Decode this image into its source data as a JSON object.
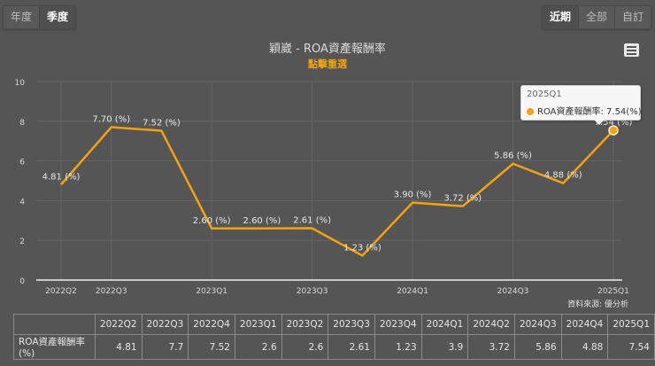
{
  "toolbar": {
    "period_buttons": [
      {
        "label": "年度",
        "active": false
      },
      {
        "label": "季度",
        "active": true
      }
    ],
    "range_buttons": [
      {
        "label": "近期",
        "active": true
      },
      {
        "label": "全部",
        "active": false
      },
      {
        "label": "自訂",
        "active": false
      }
    ]
  },
  "header": {
    "title": "穎崴 - ROA資產報酬率",
    "subtitle": "點擊重選",
    "menu_icon": "hamburger-menu-icon"
  },
  "tooltip": {
    "title": "2025Q1",
    "series": "ROA資產報酬率",
    "value": "7.54(%)",
    "text": "ROA資產報酬率: 7.54(%)"
  },
  "source": "資料來源: 優分析",
  "colors": {
    "line": "#f5a30c",
    "background": "#555555",
    "grid": "#666666",
    "subtitle": "#f0a30a"
  },
  "chart_data": {
    "type": "line",
    "title": "穎崴 - ROA資產報酬率",
    "subtitle": "點擊重選",
    "xlabel": "",
    "ylabel": "",
    "ylim": [
      0,
      10
    ],
    "yticks": [
      0,
      2,
      4,
      6,
      8,
      10
    ],
    "xtick_labels": [
      "2022Q2",
      "2022Q3",
      "2023Q1",
      "2023Q3",
      "2024Q1",
      "2024Q3",
      "2025Q1"
    ],
    "categories": [
      "2022Q2",
      "2022Q3",
      "2022Q4",
      "2023Q1",
      "2023Q2",
      "2023Q3",
      "2023Q4",
      "2024Q1",
      "2024Q2",
      "2024Q3",
      "2024Q4",
      "2025Q1"
    ],
    "series": [
      {
        "name": "ROA資產報酬率",
        "unit": "(%)",
        "values": [
          4.81,
          7.7,
          7.52,
          2.6,
          2.6,
          2.61,
          1.23,
          3.9,
          3.72,
          5.86,
          4.88,
          7.54
        ],
        "labels": [
          "4.81 (%)",
          "7.70 (%)",
          "7.52 (%)",
          "2.60 (%)",
          "2.60 (%)",
          "2.61 (%)",
          "1.23 (%)",
          "3.90 (%)",
          "3.72 (%)",
          "5.86 (%)",
          "4.88 (%)",
          "7.54 (%)"
        ]
      }
    ],
    "grid": true,
    "legend": "none"
  },
  "table": {
    "header": [
      "",
      "2022Q2",
      "2022Q3",
      "2022Q4",
      "2023Q1",
      "2023Q2",
      "2023Q3",
      "2023Q4",
      "2024Q1",
      "2024Q2",
      "2024Q3",
      "2024Q4",
      "2025Q1"
    ],
    "rows": [
      [
        "ROA資產報酬率(%)",
        "4.81",
        "7.7",
        "7.52",
        "2.6",
        "2.6",
        "2.61",
        "1.23",
        "3.9",
        "3.72",
        "5.86",
        "4.88",
        "7.54"
      ]
    ]
  }
}
